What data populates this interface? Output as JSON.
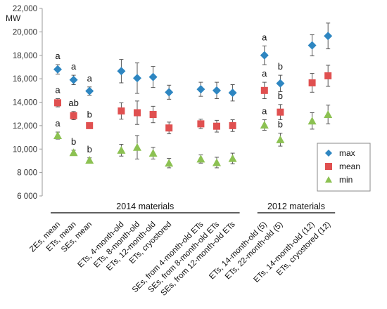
{
  "chart_data": {
    "type": "scatter",
    "ylabel": "MW",
    "ylim": [
      6000,
      22000
    ],
    "y_ticks": [
      "6 000",
      "8 000",
      "10,000",
      "12,000",
      "14,000",
      "16,000",
      "18,000",
      "20,000",
      "22,000"
    ],
    "grid": false,
    "legend_position": "bottom-right",
    "categories": [
      "ZEs, mean",
      "ETs, mean",
      "SEs, mean",
      "ETs, 4-month-old",
      "ETs, 8-month-old",
      "ETs, 12-month-old",
      "ETs, cryostored",
      "SEs, from 4-month-old ETs",
      "SEs, from 8-month-old ETs",
      "SEs, from 12-month-old ETs",
      "ETs, 14-month-old (5)",
      "ETs, 22-month-old (5)",
      "ETs, 14-month-old (12)",
      "ETs, cryostored (12)"
    ],
    "category_slots": [
      0,
      1,
      2,
      4,
      5,
      6,
      7,
      9,
      10,
      11,
      13,
      14,
      16,
      17
    ],
    "groups": [
      {
        "label": "2014 materials",
        "from": 0,
        "to": 9
      },
      {
        "label": "2012 materials",
        "from": 10,
        "to": 13
      }
    ],
    "series": [
      {
        "name": "max",
        "marker": "diamond",
        "color": "#2e86c1",
        "values": [
          16800,
          15900,
          14950,
          16650,
          16050,
          16150,
          14850,
          15100,
          15000,
          14800,
          18000,
          15600,
          18850,
          19650
        ],
        "errors": [
          400,
          400,
          350,
          1000,
          1300,
          900,
          600,
          600,
          700,
          700,
          800,
          700,
          900,
          1100
        ],
        "letters": [
          "a",
          "a",
          "a",
          "",
          "",
          "",
          "",
          "",
          "",
          "",
          "a",
          "b",
          "",
          ""
        ]
      },
      {
        "name": "mean",
        "marker": "square",
        "color": "#e05050",
        "values": [
          13950,
          12850,
          12000,
          13250,
          13100,
          12950,
          11800,
          12150,
          11950,
          12000,
          15000,
          13150,
          15650,
          16250
        ],
        "errors": [
          350,
          350,
          200,
          700,
          1000,
          700,
          500,
          400,
          500,
          500,
          700,
          650,
          800,
          900
        ],
        "letters": [
          "a",
          "ab",
          "b",
          "",
          "",
          "",
          "",
          "",
          "",
          "",
          "a",
          "b",
          "",
          ""
        ]
      },
      {
        "name": "min",
        "marker": "triangle",
        "color": "#8cc152",
        "values": [
          11150,
          9700,
          9050,
          9900,
          10150,
          9650,
          8800,
          9150,
          8850,
          9200,
          12050,
          10800,
          12400,
          12950
        ],
        "errors": [
          300,
          200,
          200,
          500,
          1000,
          500,
          400,
          350,
          450,
          450,
          450,
          550,
          700,
          800
        ],
        "letters": [
          "a",
          "b",
          "b",
          "",
          "",
          "",
          "",
          "",
          "",
          "",
          "a",
          "b",
          "",
          ""
        ]
      }
    ]
  }
}
